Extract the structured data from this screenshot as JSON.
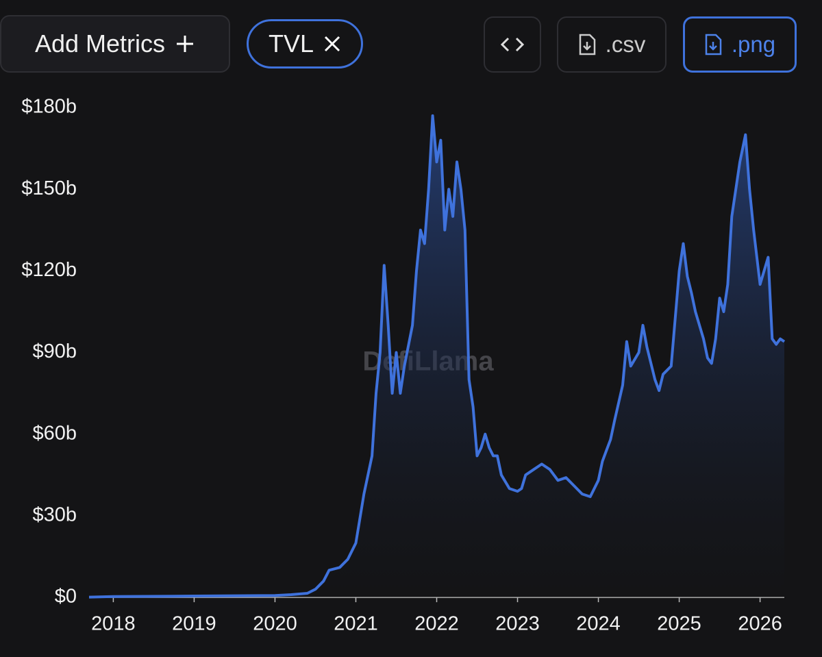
{
  "buttons": {
    "add_metrics": "Add Metrics",
    "metric": "TVL",
    "csv": ".csv",
    "png": ".png"
  },
  "chart_data": {
    "type": "area",
    "watermark": "DefiLlama",
    "color": "#3f72dc",
    "x": [
      2017.7,
      2018.0,
      2019.0,
      2020.0,
      2020.2,
      2020.4,
      2020.5,
      2020.6,
      2020.67,
      2020.8,
      2020.9,
      2021.0,
      2021.1,
      2021.15,
      2021.2,
      2021.25,
      2021.3,
      2021.35,
      2021.4,
      2021.45,
      2021.5,
      2021.55,
      2021.6,
      2021.7,
      2021.75,
      2021.8,
      2021.85,
      2021.9,
      2021.95,
      2022.0,
      2022.05,
      2022.1,
      2022.15,
      2022.2,
      2022.25,
      2022.3,
      2022.35,
      2022.4,
      2022.45,
      2022.5,
      2022.55,
      2022.6,
      2022.65,
      2022.7,
      2022.75,
      2022.8,
      2022.9,
      2023.0,
      2023.05,
      2023.1,
      2023.2,
      2023.3,
      2023.4,
      2023.5,
      2023.6,
      2023.7,
      2023.8,
      2023.9,
      2024.0,
      2024.05,
      2024.1,
      2024.15,
      2024.2,
      2024.3,
      2024.35,
      2024.4,
      2024.5,
      2024.55,
      2024.6,
      2024.7,
      2024.75,
      2024.8,
      2024.9,
      2025.0,
      2025.05,
      2025.1,
      2025.15,
      2025.2,
      2025.3,
      2025.35,
      2025.4,
      2025.45,
      2025.5,
      2025.55,
      2025.6,
      2025.65,
      2025.7,
      2025.75,
      2025.82,
      2025.87,
      2025.92,
      2026.0,
      2026.05,
      2026.1,
      2026.15,
      2026.2,
      2026.25,
      2026.3
    ],
    "values": [
      0.1,
      0.3,
      0.5,
      0.7,
      1.0,
      1.5,
      3,
      6,
      10,
      11,
      14,
      20,
      38,
      45,
      52,
      75,
      90,
      122,
      100,
      75,
      90,
      75,
      85,
      100,
      120,
      135,
      130,
      150,
      177,
      160,
      168,
      135,
      150,
      140,
      160,
      150,
      135,
      80,
      70,
      52,
      55,
      60,
      55,
      52,
      52,
      45,
      40,
      39,
      40,
      45,
      47,
      49,
      47,
      43,
      44,
      41,
      38,
      37,
      43,
      50,
      54,
      58,
      65,
      78,
      94,
      85,
      90,
      100,
      92,
      80,
      76,
      82,
      85,
      120,
      130,
      118,
      112,
      105,
      95,
      88,
      86,
      95,
      110,
      105,
      115,
      140,
      150,
      160,
      170,
      150,
      135,
      115,
      120,
      125,
      95,
      93,
      95,
      94
    ],
    "xlim": [
      2017.7,
      2026.3
    ],
    "xticks": [
      2018,
      2019,
      2020,
      2021,
      2022,
      2023,
      2024,
      2025,
      2026
    ],
    "ylim": [
      0,
      180
    ],
    "yticks": [
      {
        "value": 0,
        "label": "$0"
      },
      {
        "value": 30,
        "label": "$30b"
      },
      {
        "value": 60,
        "label": "$60b"
      },
      {
        "value": 90,
        "label": "$90b"
      },
      {
        "value": 120,
        "label": "$120b"
      },
      {
        "value": 150,
        "label": "$150b"
      },
      {
        "value": 180,
        "label": "$180b"
      }
    ],
    "grid": false
  }
}
